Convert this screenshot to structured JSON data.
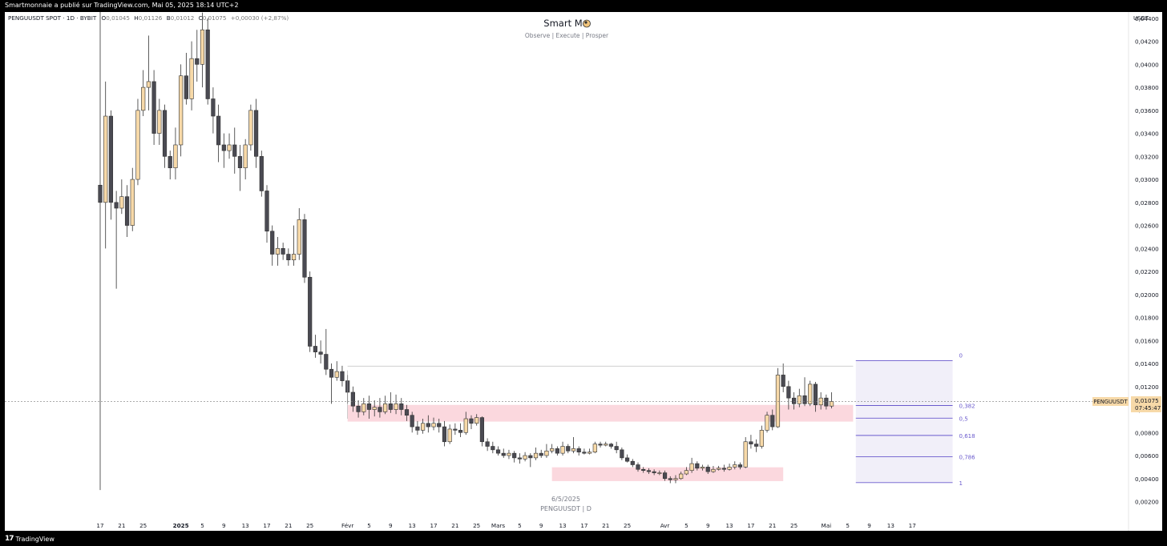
{
  "publisher_line": "Smartmonnaie a publié sur TradingView.com, Mai 05, 2025 18:14 UTC+2",
  "brand": {
    "logo": "17",
    "name": "TradingView"
  },
  "legend": {
    "symbol": "PENGUUSDT SPOT · 1D · BYBIT",
    "open_label": "O",
    "open": "0,01045",
    "high_label": "H",
    "high": "0,01126",
    "low_label": "B",
    "low": "0,01012",
    "close_label": "C",
    "close": "0,01075",
    "change": "+0,00030 (+2,87%)"
  },
  "header": {
    "title": "Smart Mo",
    "subtitle": "Observe |  Execute |  Prosper"
  },
  "watermark": {
    "date": "6/5/2025",
    "symbol": "PENGUUSDT | D"
  },
  "price_scale_unit": "USDT",
  "last_price": {
    "label": "PENGUUSDT",
    "value": "0,01075",
    "countdown": "07:45:47"
  },
  "colors": {
    "up": "#f7d9a8",
    "down": "#4a4a52",
    "zone": "#f7b8c2",
    "fib": "#6a5acd",
    "fib_fill": "#ebe8f7"
  },
  "fibonacci": {
    "levels": [
      {
        "label": "0",
        "price": 0.01425
      },
      {
        "label": "0,382",
        "price": 0.01035
      },
      {
        "label": "0,5",
        "price": 0.00925
      },
      {
        "label": "0,618",
        "price": 0.00775
      },
      {
        "label": "0,786",
        "price": 0.0059
      },
      {
        "label": "1",
        "price": 0.00365
      }
    ]
  },
  "chart_data": {
    "type": "candlestick",
    "title": "",
    "ylim": [
      0.0012,
      0.0442
    ],
    "y_ticks": [
      "0,04400",
      "0,04200",
      "0,04000",
      "0,03800",
      "0,03600",
      "0,03400",
      "0,03200",
      "0,03000",
      "0,02800",
      "0,02600",
      "0,02400",
      "0,02200",
      "0,02000",
      "0,01800",
      "0,01600",
      "0,01400",
      "0,01200",
      "0,01000",
      "0,00800",
      "0,00600",
      "0,00400",
      "0,00200"
    ],
    "y_tick_values": [
      0.044,
      0.042,
      0.04,
      0.038,
      0.036,
      0.034,
      0.032,
      0.03,
      0.028,
      0.026,
      0.024,
      0.022,
      0.02,
      0.018,
      0.016,
      0.014,
      0.012,
      0.01,
      0.008,
      0.006,
      0.004,
      0.002
    ],
    "x_ticks": [
      {
        "day": 0,
        "label": "17",
        "bold": false
      },
      {
        "day": 4,
        "label": "21",
        "bold": false
      },
      {
        "day": 8,
        "label": "25",
        "bold": false
      },
      {
        "day": 15,
        "label": "2025",
        "bold": true
      },
      {
        "day": 19,
        "label": "5",
        "bold": false
      },
      {
        "day": 23,
        "label": "9",
        "bold": false
      },
      {
        "day": 27,
        "label": "13",
        "bold": false
      },
      {
        "day": 31,
        "label": "17",
        "bold": false
      },
      {
        "day": 35,
        "label": "21",
        "bold": false
      },
      {
        "day": 39,
        "label": "25",
        "bold": false
      },
      {
        "day": 46,
        "label": "Févr",
        "bold": false
      },
      {
        "day": 50,
        "label": "5",
        "bold": false
      },
      {
        "day": 54,
        "label": "9",
        "bold": false
      },
      {
        "day": 58,
        "label": "13",
        "bold": false
      },
      {
        "day": 62,
        "label": "17",
        "bold": false
      },
      {
        "day": 66,
        "label": "21",
        "bold": false
      },
      {
        "day": 70,
        "label": "25",
        "bold": false
      },
      {
        "day": 74,
        "label": "Mars",
        "bold": false
      },
      {
        "day": 78,
        "label": "5",
        "bold": false
      },
      {
        "day": 82,
        "label": "9",
        "bold": false
      },
      {
        "day": 86,
        "label": "13",
        "bold": false
      },
      {
        "day": 90,
        "label": "17",
        "bold": false
      },
      {
        "day": 94,
        "label": "21",
        "bold": false
      },
      {
        "day": 98,
        "label": "25",
        "bold": false
      },
      {
        "day": 105,
        "label": "Avr",
        "bold": false
      },
      {
        "day": 109,
        "label": "5",
        "bold": false
      },
      {
        "day": 113,
        "label": "9",
        "bold": false
      },
      {
        "day": 117,
        "label": "13",
        "bold": false
      },
      {
        "day": 121,
        "label": "17",
        "bold": false
      },
      {
        "day": 125,
        "label": "21",
        "bold": false
      },
      {
        "day": 129,
        "label": "25",
        "bold": false
      },
      {
        "day": 135,
        "label": "Mai",
        "bold": false
      },
      {
        "day": 139,
        "label": "5",
        "bold": false
      },
      {
        "day": 143,
        "label": "9",
        "bold": false
      },
      {
        "day": 147,
        "label": "13",
        "bold": false
      },
      {
        "day": 151,
        "label": "17",
        "bold": false
      }
    ],
    "start_date": "2024-12-17",
    "candles": [
      [
        0.0295,
        0.028,
        0.046,
        0.003
      ],
      [
        0.028,
        0.0355,
        0.0385,
        0.024
      ],
      [
        0.0355,
        0.028,
        0.036,
        0.0265
      ],
      [
        0.028,
        0.0275,
        0.029,
        0.0205
      ],
      [
        0.0275,
        0.0285,
        0.03,
        0.027
      ],
      [
        0.0285,
        0.026,
        0.0295,
        0.025
      ],
      [
        0.026,
        0.03,
        0.031,
        0.0255
      ],
      [
        0.03,
        0.036,
        0.037,
        0.0295
      ],
      [
        0.036,
        0.038,
        0.0395,
        0.0355
      ],
      [
        0.038,
        0.0385,
        0.0425,
        0.036
      ],
      [
        0.0385,
        0.034,
        0.0395,
        0.033
      ],
      [
        0.034,
        0.036,
        0.037,
        0.033
      ],
      [
        0.036,
        0.032,
        0.0365,
        0.031
      ],
      [
        0.032,
        0.031,
        0.0325,
        0.03
      ],
      [
        0.031,
        0.033,
        0.0345,
        0.03
      ],
      [
        0.033,
        0.039,
        0.04,
        0.032
      ],
      [
        0.039,
        0.037,
        0.041,
        0.0365
      ],
      [
        0.037,
        0.0405,
        0.042,
        0.036
      ],
      [
        0.0405,
        0.04,
        0.043,
        0.0385
      ],
      [
        0.04,
        0.043,
        0.0445,
        0.038
      ],
      [
        0.043,
        0.037,
        0.044,
        0.0365
      ],
      [
        0.037,
        0.0355,
        0.038,
        0.034
      ],
      [
        0.0355,
        0.033,
        0.0365,
        0.0315
      ],
      [
        0.033,
        0.0325,
        0.034,
        0.031
      ],
      [
        0.0325,
        0.033,
        0.034,
        0.0318
      ],
      [
        0.033,
        0.032,
        0.0345,
        0.0305
      ],
      [
        0.032,
        0.031,
        0.033,
        0.029
      ],
      [
        0.031,
        0.033,
        0.0335,
        0.03
      ],
      [
        0.033,
        0.036,
        0.0365,
        0.0325
      ],
      [
        0.036,
        0.032,
        0.037,
        0.031
      ],
      [
        0.032,
        0.029,
        0.0325,
        0.0285
      ],
      [
        0.029,
        0.0255,
        0.0295,
        0.0245
      ],
      [
        0.0255,
        0.0235,
        0.026,
        0.0225
      ],
      [
        0.0235,
        0.024,
        0.025,
        0.0225
      ],
      [
        0.024,
        0.0235,
        0.0245,
        0.023
      ],
      [
        0.0235,
        0.023,
        0.024,
        0.0225
      ],
      [
        0.023,
        0.0235,
        0.026,
        0.0225
      ],
      [
        0.0235,
        0.0265,
        0.0275,
        0.023
      ],
      [
        0.0265,
        0.0215,
        0.027,
        0.021
      ],
      [
        0.0215,
        0.0155,
        0.022,
        0.015
      ],
      [
        0.0155,
        0.015,
        0.0165,
        0.0145
      ],
      [
        0.015,
        0.0148,
        0.016,
        0.014
      ],
      [
        0.0148,
        0.0135,
        0.017,
        0.013
      ],
      [
        0.0135,
        0.0128,
        0.014,
        0.0105
      ],
      [
        0.0128,
        0.0133,
        0.0142,
        0.0125
      ],
      [
        0.0133,
        0.0125,
        0.0138,
        0.012
      ],
      [
        0.0125,
        0.0115,
        0.013,
        0.0105
      ],
      [
        0.0115,
        0.0103,
        0.012,
        0.0098
      ],
      [
        0.0103,
        0.0098,
        0.0108,
        0.0093
      ],
      [
        0.0098,
        0.0105,
        0.011,
        0.0095
      ],
      [
        0.0105,
        0.01,
        0.0112,
        0.0092
      ],
      [
        0.01,
        0.0102,
        0.0108,
        0.0094
      ],
      [
        0.0102,
        0.0098,
        0.011,
        0.0093
      ],
      [
        0.0098,
        0.0105,
        0.0112,
        0.0096
      ],
      [
        0.0105,
        0.01,
        0.0115,
        0.0097
      ],
      [
        0.01,
        0.0105,
        0.0113,
        0.0096
      ],
      [
        0.0105,
        0.01,
        0.011,
        0.0095
      ],
      [
        0.01,
        0.0095,
        0.0104,
        0.009
      ],
      [
        0.0095,
        0.0085,
        0.0098,
        0.008
      ],
      [
        0.0085,
        0.0082,
        0.009,
        0.0078
      ],
      [
        0.0082,
        0.0088,
        0.0092,
        0.0079
      ],
      [
        0.0088,
        0.0085,
        0.0095,
        0.008
      ],
      [
        0.0085,
        0.0088,
        0.0093,
        0.0082
      ],
      [
        0.0088,
        0.0085,
        0.0092,
        0.008
      ],
      [
        0.0085,
        0.0072,
        0.009,
        0.0068
      ],
      [
        0.0072,
        0.0083,
        0.0087,
        0.007
      ],
      [
        0.0083,
        0.0082,
        0.0088,
        0.0078
      ],
      [
        0.0082,
        0.008,
        0.0088,
        0.0076
      ],
      [
        0.008,
        0.0092,
        0.0098,
        0.0078
      ],
      [
        0.0092,
        0.0088,
        0.0095,
        0.0083
      ],
      [
        0.0088,
        0.0093,
        0.0096,
        0.0086
      ],
      [
        0.0093,
        0.0072,
        0.0094,
        0.0068
      ],
      [
        0.0072,
        0.0068,
        0.0075,
        0.0064
      ],
      [
        0.0068,
        0.0065,
        0.0072,
        0.0062
      ],
      [
        0.0065,
        0.0062,
        0.0068,
        0.006
      ],
      [
        0.0062,
        0.006,
        0.0066,
        0.0058
      ],
      [
        0.006,
        0.0062,
        0.0065,
        0.0057
      ],
      [
        0.0062,
        0.0058,
        0.0064,
        0.0054
      ],
      [
        0.0058,
        0.0057,
        0.0062,
        0.0053
      ],
      [
        0.0057,
        0.006,
        0.0063,
        0.0055
      ],
      [
        0.006,
        0.0058,
        0.0062,
        0.005
      ],
      [
        0.0058,
        0.0062,
        0.0067,
        0.0056
      ],
      [
        0.0062,
        0.006,
        0.0065,
        0.0058
      ],
      [
        0.006,
        0.0064,
        0.007,
        0.0058
      ],
      [
        0.0064,
        0.0066,
        0.007,
        0.0062
      ],
      [
        0.0066,
        0.0062,
        0.0068,
        0.006
      ],
      [
        0.0062,
        0.0068,
        0.0072,
        0.006
      ],
      [
        0.0068,
        0.0064,
        0.007,
        0.0062
      ],
      [
        0.0064,
        0.0066,
        0.0076,
        0.0062
      ],
      [
        0.0066,
        0.0063,
        0.0068,
        0.006
      ],
      [
        0.0063,
        0.0062,
        0.0066,
        0.0061
      ],
      [
        0.0062,
        0.0063,
        0.0066,
        0.0061
      ],
      [
        0.0063,
        0.007,
        0.0072,
        0.0062
      ],
      [
        0.007,
        0.0069,
        0.0072,
        0.0067
      ],
      [
        0.0069,
        0.007,
        0.0072,
        0.0068
      ],
      [
        0.007,
        0.0068,
        0.0071,
        0.0066
      ],
      [
        0.0068,
        0.0065,
        0.0072,
        0.0062
      ],
      [
        0.0065,
        0.0058,
        0.0067,
        0.0056
      ],
      [
        0.0058,
        0.0055,
        0.0061,
        0.0054
      ],
      [
        0.0055,
        0.0052,
        0.0057,
        0.005
      ],
      [
        0.0052,
        0.0048,
        0.0054,
        0.0046
      ],
      [
        0.0048,
        0.0047,
        0.005,
        0.0045
      ],
      [
        0.0047,
        0.0046,
        0.0049,
        0.0044
      ],
      [
        0.0046,
        0.0045,
        0.0048,
        0.0043
      ],
      [
        0.0045,
        0.0045,
        0.0047,
        0.0043
      ],
      [
        0.0045,
        0.004,
        0.0047,
        0.0038
      ],
      [
        0.004,
        0.0039,
        0.0042,
        0.0036
      ],
      [
        0.0039,
        0.004,
        0.0043,
        0.0036
      ],
      [
        0.004,
        0.0044,
        0.0046,
        0.0039
      ],
      [
        0.0044,
        0.0047,
        0.005,
        0.0043
      ],
      [
        0.0047,
        0.0053,
        0.0058,
        0.0045
      ],
      [
        0.0053,
        0.0049,
        0.0055,
        0.0047
      ],
      [
        0.0049,
        0.005,
        0.0052,
        0.0047
      ],
      [
        0.005,
        0.0046,
        0.0052,
        0.0044
      ],
      [
        0.0046,
        0.0048,
        0.0051,
        0.0045
      ],
      [
        0.0048,
        0.0049,
        0.0051,
        0.0047
      ],
      [
        0.0049,
        0.0048,
        0.0052,
        0.0046
      ],
      [
        0.0048,
        0.005,
        0.0053,
        0.0047
      ],
      [
        0.005,
        0.0052,
        0.0055,
        0.0048
      ],
      [
        0.0052,
        0.005,
        0.0054,
        0.0048
      ],
      [
        0.005,
        0.0072,
        0.0076,
        0.0049
      ],
      [
        0.0072,
        0.007,
        0.0078,
        0.0066
      ],
      [
        0.007,
        0.0068,
        0.0074,
        0.0063
      ],
      [
        0.0068,
        0.0082,
        0.0086,
        0.0066
      ],
      [
        0.0082,
        0.0095,
        0.0098,
        0.008
      ],
      [
        0.0095,
        0.0085,
        0.01,
        0.0082
      ],
      [
        0.0085,
        0.013,
        0.0136,
        0.0084
      ],
      [
        0.013,
        0.012,
        0.014,
        0.0115
      ],
      [
        0.012,
        0.011,
        0.0125,
        0.01
      ],
      [
        0.011,
        0.0105,
        0.0115,
        0.01
      ],
      [
        0.0105,
        0.0112,
        0.0118,
        0.0102
      ],
      [
        0.0112,
        0.0105,
        0.0128,
        0.0103
      ],
      [
        0.0105,
        0.0122,
        0.0125,
        0.0103
      ],
      [
        0.0122,
        0.0104,
        0.0124,
        0.0098
      ],
      [
        0.0104,
        0.011,
        0.0115,
        0.01
      ],
      [
        0.011,
        0.0103,
        0.0113,
        0.01
      ],
      [
        0.0103,
        0.0107,
        0.0115,
        0.0101
      ]
    ]
  },
  "zones": [
    {
      "name": "resistance-zone",
      "day_start": 46,
      "day_end": 140,
      "top": 0.0104,
      "bottom": 0.00895
    },
    {
      "name": "support-zone",
      "day_start": 84,
      "day_end": 127,
      "top": 0.00498,
      "bottom": 0.00378
    }
  ]
}
